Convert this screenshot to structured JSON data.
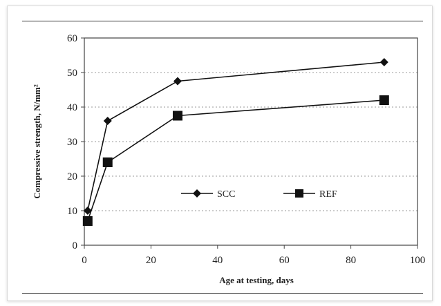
{
  "chart_data": {
    "type": "line",
    "xlabel": "Age at testing, days",
    "ylabel": "Compressive strength, N/mm²",
    "xlim": [
      0,
      100
    ],
    "ylim": [
      0,
      60
    ],
    "xticks": [
      "0",
      "20",
      "40",
      "60",
      "80",
      "100"
    ],
    "yticks": [
      "0",
      "10",
      "20",
      "30",
      "40",
      "50",
      "60"
    ],
    "grid": "horizontal dotted",
    "legend": "center-right",
    "series": [
      {
        "name": "SCC",
        "marker": "diamond",
        "x": [
          1,
          7,
          28,
          90
        ],
        "y": [
          10,
          36,
          47.5,
          53
        ]
      },
      {
        "name": "REF",
        "marker": "square",
        "x": [
          1,
          7,
          28,
          90
        ],
        "y": [
          7,
          24,
          37.5,
          42
        ]
      }
    ]
  }
}
